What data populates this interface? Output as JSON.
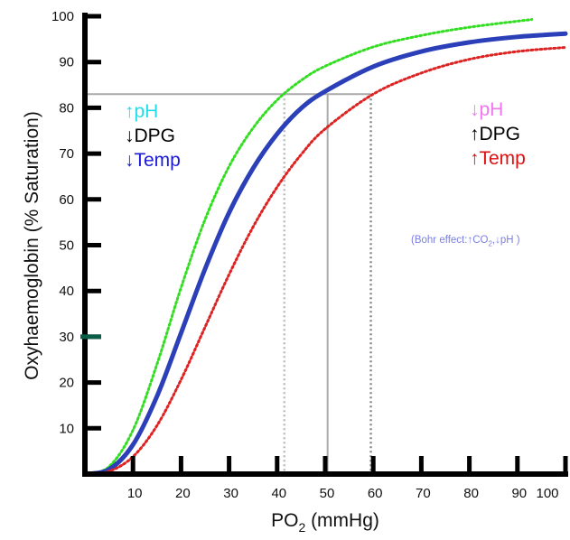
{
  "chart_data": {
    "type": "line",
    "xlabel": "PO",
    "xlabel_sub": "2",
    "xlabel_unit": " (mmHg)",
    "ylabel": "Oxyhaemoglobin (% Saturation)",
    "xlim": [
      0,
      100
    ],
    "ylim": [
      0,
      100
    ],
    "x_ticks": [
      10,
      20,
      30,
      40,
      50,
      60,
      70,
      80,
      90,
      100
    ],
    "y_ticks": [
      10,
      20,
      30,
      40,
      50,
      60,
      70,
      80,
      90,
      100
    ],
    "highlighted_y_tick": 30,
    "grid": false,
    "series": [
      {
        "color": "#33dd22",
        "style": "dotted",
        "x": [
          0,
          5,
          10,
          15,
          20,
          25,
          30,
          35,
          40,
          45,
          50,
          60,
          70,
          80,
          93
        ],
        "y": [
          0,
          1.6,
          9.6,
          24.0,
          40.7,
          55.6,
          67.2,
          75.6,
          81.7,
          86.0,
          89.1,
          93.3,
          95.8,
          97.6,
          99.3
        ]
      },
      {
        "color": "#2a3fb8",
        "style": "solid",
        "x": [
          0,
          5,
          10,
          15,
          20,
          25,
          30,
          35,
          40,
          45,
          50,
          60,
          70,
          80,
          90,
          100
        ],
        "y": [
          0,
          1.0,
          6.4,
          17.0,
          30.8,
          44.8,
          57.1,
          66.8,
          74.3,
          79.9,
          83.6,
          89.0,
          92.3,
          94.3,
          95.5,
          96.2
        ]
      },
      {
        "color": "#dd2222",
        "style": "dotted",
        "x": [
          0,
          5,
          10,
          15,
          20,
          25,
          30,
          35,
          40,
          45,
          50,
          60,
          70,
          80,
          90,
          100
        ],
        "y": [
          0,
          0.6,
          3.8,
          10.6,
          20.6,
          32.1,
          43.6,
          54.0,
          62.7,
          69.8,
          75.4,
          83.0,
          87.6,
          90.6,
          92.3,
          93.2
        ]
      }
    ],
    "reference_lines": {
      "horizontal_y": 83,
      "vertical": [
        {
          "x": 41.5,
          "style": "dotted",
          "color": "#bbbbbb"
        },
        {
          "x": 50.5,
          "style": "solid",
          "color": "#aaaaaa"
        },
        {
          "x": 59.5,
          "style": "dotted",
          "color": "#888888"
        }
      ]
    },
    "annotations": {
      "left_shift": [
        {
          "arrow": "↑",
          "text": "pH",
          "color": "#22dde8"
        },
        {
          "arrow": "↓",
          "text": "DPG",
          "color": "#000000"
        },
        {
          "arrow": "↓",
          "text": "Temp",
          "color": "#1a1ad8"
        }
      ],
      "right_shift": [
        {
          "arrow": "↓",
          "text": "pH",
          "color": "#ee77ee"
        },
        {
          "arrow": "↑",
          "text": "DPG",
          "color": "#000000"
        },
        {
          "arrow": "↑",
          "text": "Temp",
          "color": "#dd1111"
        }
      ],
      "bohr": {
        "open": "(Bohr effect:",
        "up": "↑",
        "co2": "CO",
        "co2_sub": "2",
        "comma": ",",
        "down": "↓",
        "ph": "pH )"
      }
    }
  }
}
